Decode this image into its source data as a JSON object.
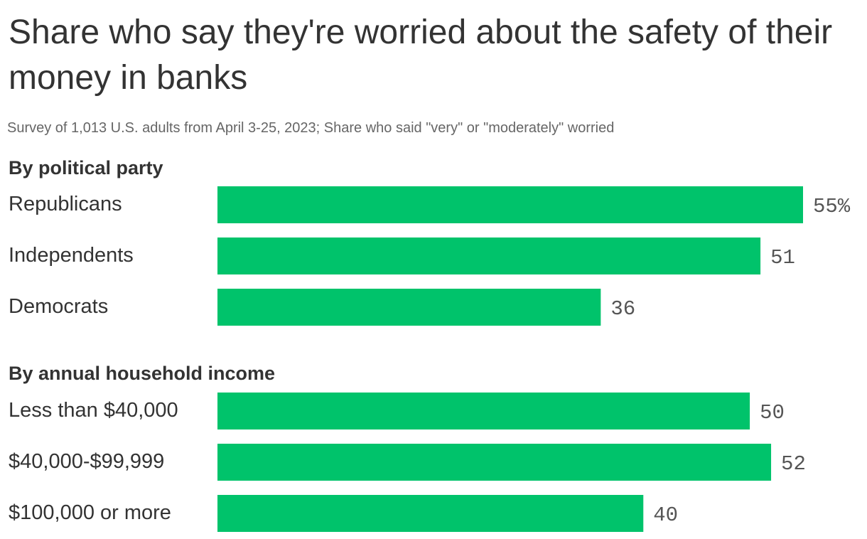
{
  "title": "Share who say they're worried about the safety of their money in banks",
  "subtitle": "Survey of 1,013 U.S. adults from April 3-25, 2023; Share who said \"very\" or \"moderately\" worried",
  "chart_data": {
    "type": "bar",
    "orientation": "horizontal",
    "unit": "%",
    "xlim": [
      0,
      55
    ],
    "bar_color": "#00c36b",
    "groups": [
      {
        "name": "By political party",
        "categories": [
          "Republicans",
          "Independents",
          "Democrats"
        ],
        "values": [
          55,
          51,
          36
        ],
        "value_labels": [
          "55%",
          "51",
          "36"
        ]
      },
      {
        "name": "By annual household income",
        "categories": [
          "Less than $40,000",
          "$40,000-$99,999",
          "$100,000 or more"
        ],
        "values": [
          50,
          52,
          40
        ],
        "value_labels": [
          "50",
          "52",
          "40"
        ]
      }
    ]
  }
}
